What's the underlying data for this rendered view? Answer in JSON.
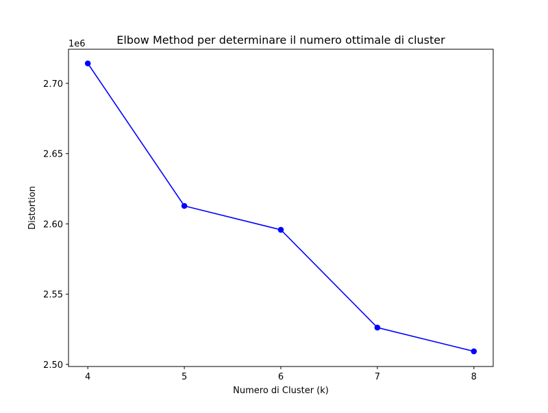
{
  "chart_data": {
    "type": "line",
    "title": "Elbow Method per determinare il numero ottimale di cluster",
    "xlabel": "Numero di Cluster (k)",
    "ylabel": "Distortion",
    "y_offset_label": "1e6",
    "x": [
      4,
      5,
      6,
      7,
      8
    ],
    "x_tick_labels": [
      "4",
      "5",
      "6",
      "7",
      "8"
    ],
    "y_ticks": [
      2.5,
      2.55,
      2.6,
      2.65,
      2.7
    ],
    "y_tick_labels": [
      "2.50",
      "2.55",
      "2.60",
      "2.65",
      "2.70"
    ],
    "y_scale_factor": 1000000,
    "xlim": [
      3.8,
      8.2
    ],
    "ylim": [
      2.4985,
      2.7243
    ],
    "grid": false,
    "series": [
      {
        "values": [
          2.7142,
          2.6128,
          2.5958,
          2.5262,
          2.5093
        ],
        "color": "#0000ff",
        "marker": "circle"
      }
    ]
  }
}
